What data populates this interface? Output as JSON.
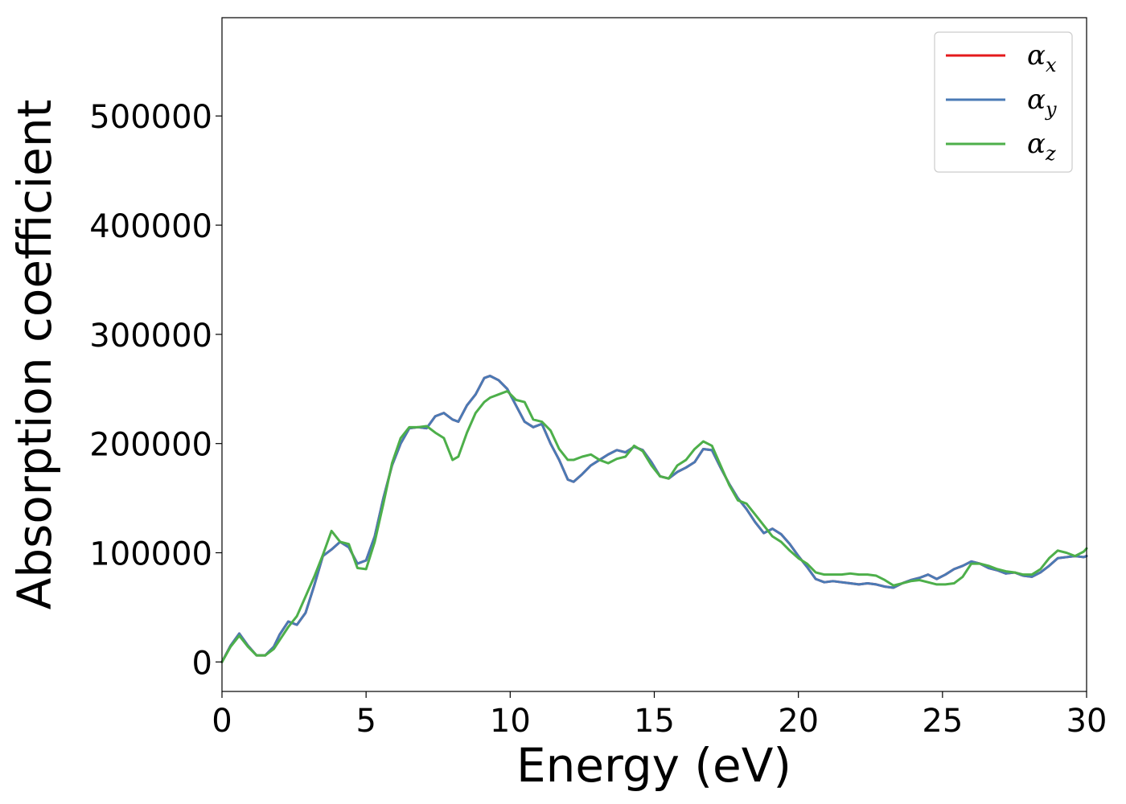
{
  "chart_data": {
    "type": "line",
    "xlabel": "Energy (eV)",
    "ylabel": "Absorption coefficient",
    "xlim": [
      0,
      30
    ],
    "ylim": [
      -27000,
      590000
    ],
    "xticks": [
      0,
      5,
      10,
      15,
      20,
      25,
      30
    ],
    "xtick_labels": [
      "0",
      "5",
      "10",
      "15",
      "20",
      "25",
      "30"
    ],
    "yticks": [
      0,
      100000,
      200000,
      300000,
      400000,
      500000
    ],
    "ytick_labels": [
      "0",
      "100000",
      "200000",
      "300000",
      "400000",
      "500000"
    ],
    "grid": false,
    "legend_position": "top-right",
    "series": [
      {
        "name": "α",
        "subscript": "x",
        "color": "#e41a1c",
        "x": [
          0,
          0.3,
          0.6,
          0.9,
          1.2,
          1.5,
          1.8,
          2.0,
          2.3,
          2.6,
          2.9,
          3.2,
          3.5,
          3.8,
          4.1,
          4.4,
          4.7,
          5.0,
          5.3,
          5.6,
          5.9,
          6.2,
          6.5,
          6.8,
          7.1,
          7.4,
          7.7,
          8.0,
          8.2,
          8.5,
          8.8,
          9.1,
          9.3,
          9.6,
          9.9,
          10.2,
          10.5,
          10.8,
          11.1,
          11.4,
          11.7,
          12.0,
          12.2,
          12.5,
          12.8,
          13.1,
          13.4,
          13.7,
          14.0,
          14.3,
          14.6,
          14.9,
          15.2,
          15.5,
          15.8,
          16.1,
          16.4,
          16.7,
          17.0,
          17.3,
          17.6,
          17.9,
          18.2,
          18.5,
          18.8,
          19.1,
          19.4,
          19.7,
          20.0,
          20.3,
          20.6,
          20.9,
          21.2,
          21.5,
          21.8,
          22.1,
          22.4,
          22.7,
          23.0,
          23.3,
          23.6,
          23.9,
          24.2,
          24.5,
          24.8,
          25.1,
          25.4,
          25.7,
          26.0,
          26.3,
          26.6,
          26.9,
          27.2,
          27.5,
          27.8,
          28.1,
          28.4,
          28.7,
          29.0,
          29.3,
          29.6,
          29.9,
          30.0
        ],
        "y": [
          0,
          15000,
          26000,
          15000,
          6000,
          6000,
          14000,
          25000,
          37000,
          34000,
          45000,
          70000,
          97000,
          103000,
          110000,
          105000,
          90000,
          93000,
          115000,
          150000,
          180000,
          200000,
          214000,
          215000,
          214000,
          225000,
          228000,
          222000,
          220000,
          235000,
          245000,
          260000,
          262000,
          258000,
          250000,
          235000,
          220000,
          215000,
          218000,
          200000,
          185000,
          167000,
          165000,
          172000,
          180000,
          185000,
          190000,
          194000,
          192000,
          197000,
          194000,
          183000,
          170000,
          168000,
          174000,
          178000,
          183000,
          195000,
          194000,
          178000,
          163000,
          150000,
          140000,
          128000,
          118000,
          122000,
          117000,
          108000,
          97000,
          87000,
          76000,
          73000,
          74000,
          73000,
          72000,
          71000,
          72000,
          71000,
          69000,
          68000,
          72000,
          75000,
          77000,
          80000,
          76000,
          80000,
          85000,
          88000,
          92000,
          90000,
          86000,
          84000,
          81000,
          82000,
          79000,
          78000,
          82000,
          88000,
          95000,
          96000,
          97000,
          96000,
          97000
        ]
      },
      {
        "name": "α",
        "subscript": "y",
        "color": "#4a7ab5",
        "x": [
          0,
          0.3,
          0.6,
          0.9,
          1.2,
          1.5,
          1.8,
          2.0,
          2.3,
          2.6,
          2.9,
          3.2,
          3.5,
          3.8,
          4.1,
          4.4,
          4.7,
          5.0,
          5.3,
          5.6,
          5.9,
          6.2,
          6.5,
          6.8,
          7.1,
          7.4,
          7.7,
          8.0,
          8.2,
          8.5,
          8.8,
          9.1,
          9.3,
          9.6,
          9.9,
          10.2,
          10.5,
          10.8,
          11.1,
          11.4,
          11.7,
          12.0,
          12.2,
          12.5,
          12.8,
          13.1,
          13.4,
          13.7,
          14.0,
          14.3,
          14.6,
          14.9,
          15.2,
          15.5,
          15.8,
          16.1,
          16.4,
          16.7,
          17.0,
          17.3,
          17.6,
          17.9,
          18.2,
          18.5,
          18.8,
          19.1,
          19.4,
          19.7,
          20.0,
          20.3,
          20.6,
          20.9,
          21.2,
          21.5,
          21.8,
          22.1,
          22.4,
          22.7,
          23.0,
          23.3,
          23.6,
          23.9,
          24.2,
          24.5,
          24.8,
          25.1,
          25.4,
          25.7,
          26.0,
          26.3,
          26.6,
          26.9,
          27.2,
          27.5,
          27.8,
          28.1,
          28.4,
          28.7,
          29.0,
          29.3,
          29.6,
          29.9,
          30.0
        ],
        "y": [
          0,
          15000,
          26000,
          15000,
          6000,
          6000,
          14000,
          25000,
          37000,
          34000,
          45000,
          70000,
          97000,
          103000,
          110000,
          105000,
          90000,
          93000,
          115000,
          150000,
          180000,
          200000,
          214000,
          215000,
          214000,
          225000,
          228000,
          222000,
          220000,
          235000,
          245000,
          260000,
          262000,
          258000,
          250000,
          235000,
          220000,
          215000,
          218000,
          200000,
          185000,
          167000,
          165000,
          172000,
          180000,
          185000,
          190000,
          194000,
          192000,
          197000,
          194000,
          183000,
          170000,
          168000,
          174000,
          178000,
          183000,
          195000,
          194000,
          178000,
          163000,
          150000,
          140000,
          128000,
          118000,
          122000,
          117000,
          108000,
          97000,
          87000,
          76000,
          73000,
          74000,
          73000,
          72000,
          71000,
          72000,
          71000,
          69000,
          68000,
          72000,
          75000,
          77000,
          80000,
          76000,
          80000,
          85000,
          88000,
          92000,
          90000,
          86000,
          84000,
          81000,
          82000,
          79000,
          78000,
          82000,
          88000,
          95000,
          96000,
          97000,
          96000,
          97000
        ]
      },
      {
        "name": "α",
        "subscript": "z",
        "color": "#4daf4a",
        "x": [
          0,
          0.3,
          0.6,
          0.9,
          1.2,
          1.5,
          1.8,
          2.0,
          2.3,
          2.6,
          2.9,
          3.2,
          3.5,
          3.8,
          4.1,
          4.4,
          4.7,
          5.0,
          5.3,
          5.6,
          5.9,
          6.2,
          6.5,
          6.8,
          7.1,
          7.4,
          7.7,
          8.0,
          8.2,
          8.5,
          8.8,
          9.1,
          9.3,
          9.6,
          9.9,
          10.2,
          10.5,
          10.8,
          11.1,
          11.4,
          11.7,
          12.0,
          12.2,
          12.5,
          12.8,
          13.1,
          13.4,
          13.7,
          14.0,
          14.3,
          14.6,
          14.9,
          15.2,
          15.5,
          15.8,
          16.1,
          16.4,
          16.7,
          17.0,
          17.3,
          17.6,
          17.9,
          18.2,
          18.5,
          18.8,
          19.1,
          19.4,
          19.7,
          20.0,
          20.3,
          20.6,
          20.9,
          21.2,
          21.5,
          21.8,
          22.1,
          22.4,
          22.7,
          23.0,
          23.3,
          23.6,
          23.9,
          24.2,
          24.5,
          24.8,
          25.1,
          25.4,
          25.7,
          26.0,
          26.3,
          26.6,
          26.9,
          27.2,
          27.5,
          27.8,
          28.1,
          28.4,
          28.7,
          29.0,
          29.3,
          29.6,
          29.9,
          30.0
        ],
        "y": [
          0,
          14000,
          24000,
          14000,
          6000,
          6000,
          12000,
          20000,
          32000,
          42000,
          60000,
          78000,
          98000,
          120000,
          110000,
          108000,
          86000,
          85000,
          110000,
          145000,
          182000,
          205000,
          215000,
          215000,
          216000,
          210000,
          205000,
          185000,
          188000,
          210000,
          228000,
          238000,
          242000,
          245000,
          248000,
          240000,
          238000,
          222000,
          220000,
          212000,
          195000,
          185000,
          185000,
          188000,
          190000,
          185000,
          182000,
          186000,
          188000,
          198000,
          193000,
          180000,
          170000,
          168000,
          180000,
          185000,
          195000,
          202000,
          198000,
          180000,
          162000,
          148000,
          145000,
          135000,
          125000,
          115000,
          110000,
          102000,
          95000,
          90000,
          82000,
          80000,
          80000,
          80000,
          81000,
          80000,
          80000,
          79000,
          75000,
          70000,
          72000,
          74000,
          75000,
          73000,
          71000,
          71000,
          72000,
          78000,
          90000,
          90000,
          88000,
          85000,
          83000,
          82000,
          80000,
          80000,
          85000,
          95000,
          102000,
          100000,
          97000,
          101000,
          104000
        ]
      }
    ]
  }
}
